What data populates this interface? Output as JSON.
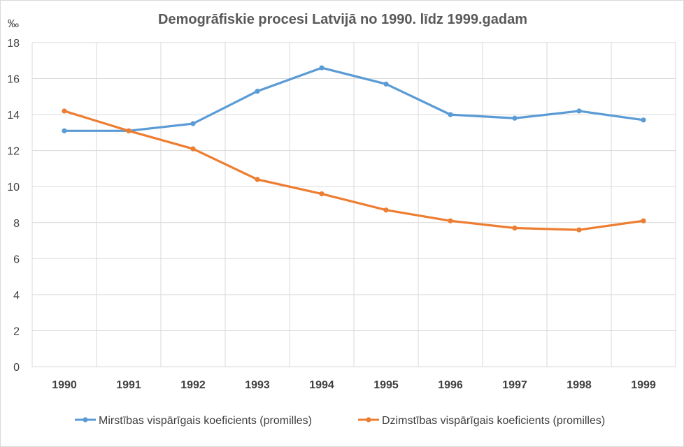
{
  "chart_data": {
    "type": "line",
    "title": "Demogrāfiskie procesi Latvijā no 1990. līdz 1999.gadam",
    "y_unit": "‰",
    "categories": [
      "1990",
      "1991",
      "1992",
      "1993",
      "1994",
      "1995",
      "1996",
      "1997",
      "1998",
      "1999"
    ],
    "ylim": [
      0,
      18
    ],
    "yticks": [
      "0",
      "2",
      "4",
      "6",
      "8",
      "10",
      "12",
      "14",
      "16",
      "18"
    ],
    "grid": true,
    "legend_position": "bottom",
    "series": [
      {
        "name": "Mirstības vispārīgais koeficients (promilles)",
        "color": "#5b9bd5",
        "values": [
          13.1,
          13.1,
          13.5,
          15.3,
          16.6,
          15.7,
          14.0,
          13.8,
          14.2,
          13.7
        ]
      },
      {
        "name": "Dzimstības vispārīgais koeficients (promilles)",
        "color": "#ed7d31",
        "values": [
          14.2,
          13.1,
          12.1,
          10.4,
          9.6,
          8.7,
          8.1,
          7.7,
          7.6,
          8.1
        ]
      }
    ]
  }
}
